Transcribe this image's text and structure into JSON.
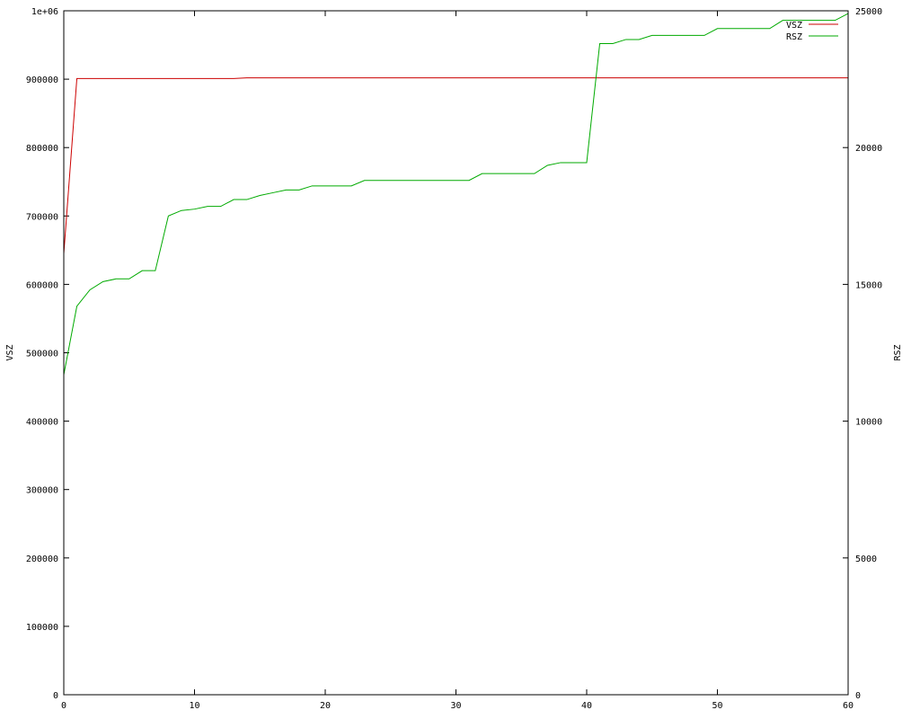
{
  "chart_data": {
    "type": "line",
    "title": "",
    "xlabel": "",
    "ylabel": "VSZ",
    "y2label": "RSZ",
    "xlim": [
      0,
      60
    ],
    "ylim": [
      0,
      1000000
    ],
    "y2lim": [
      0,
      25000
    ],
    "x_ticks": [
      0,
      10,
      20,
      30,
      40,
      50,
      60
    ],
    "y_ticks": [
      0,
      100000,
      200000,
      300000,
      400000,
      500000,
      600000,
      700000,
      800000,
      900000,
      1000000
    ],
    "y_tick_labels": [
      "0",
      "100000",
      "200000",
      "300000",
      "400000",
      "500000",
      "600000",
      "700000",
      "800000",
      "900000",
      "1e+06"
    ],
    "y2_ticks": [
      0,
      5000,
      10000,
      15000,
      20000,
      25000
    ],
    "grid": false,
    "legend_position": "top-right",
    "series": [
      {
        "name": "VSZ",
        "axis": "y",
        "color": "#cc0000",
        "x": [
          0,
          1,
          2,
          13,
          14,
          60
        ],
        "values": [
          645000,
          901000,
          901000,
          901000,
          902000,
          902000
        ]
      },
      {
        "name": "RSZ",
        "axis": "y2",
        "color": "#00aa00",
        "x": [
          0,
          1,
          2,
          3,
          4,
          5,
          6,
          7,
          8,
          9,
          10,
          11,
          12,
          13,
          14,
          15,
          16,
          17,
          18,
          19,
          20,
          21,
          22,
          23,
          24,
          25,
          26,
          27,
          28,
          29,
          30,
          31,
          32,
          33,
          34,
          35,
          36,
          37,
          38,
          39,
          40,
          41,
          42,
          43,
          44,
          45,
          46,
          47,
          48,
          49,
          50,
          51,
          52,
          53,
          54,
          55,
          56,
          57,
          58,
          59,
          60
        ],
        "values": [
          11700,
          14200,
          14800,
          15100,
          15200,
          15200,
          15500,
          15500,
          17500,
          17700,
          17750,
          17850,
          17850,
          18100,
          18100,
          18250,
          18350,
          18450,
          18450,
          18600,
          18600,
          18600,
          18600,
          18800,
          18800,
          18800,
          18800,
          18800,
          18800,
          18800,
          18800,
          18800,
          19050,
          19050,
          19050,
          19050,
          19050,
          19350,
          19450,
          19450,
          19450,
          23800,
          23800,
          23950,
          23950,
          24100,
          24100,
          24100,
          24100,
          24100,
          24350,
          24350,
          24350,
          24350,
          24350,
          24650,
          24650,
          24650,
          24650,
          24650,
          24900
        ]
      }
    ]
  }
}
